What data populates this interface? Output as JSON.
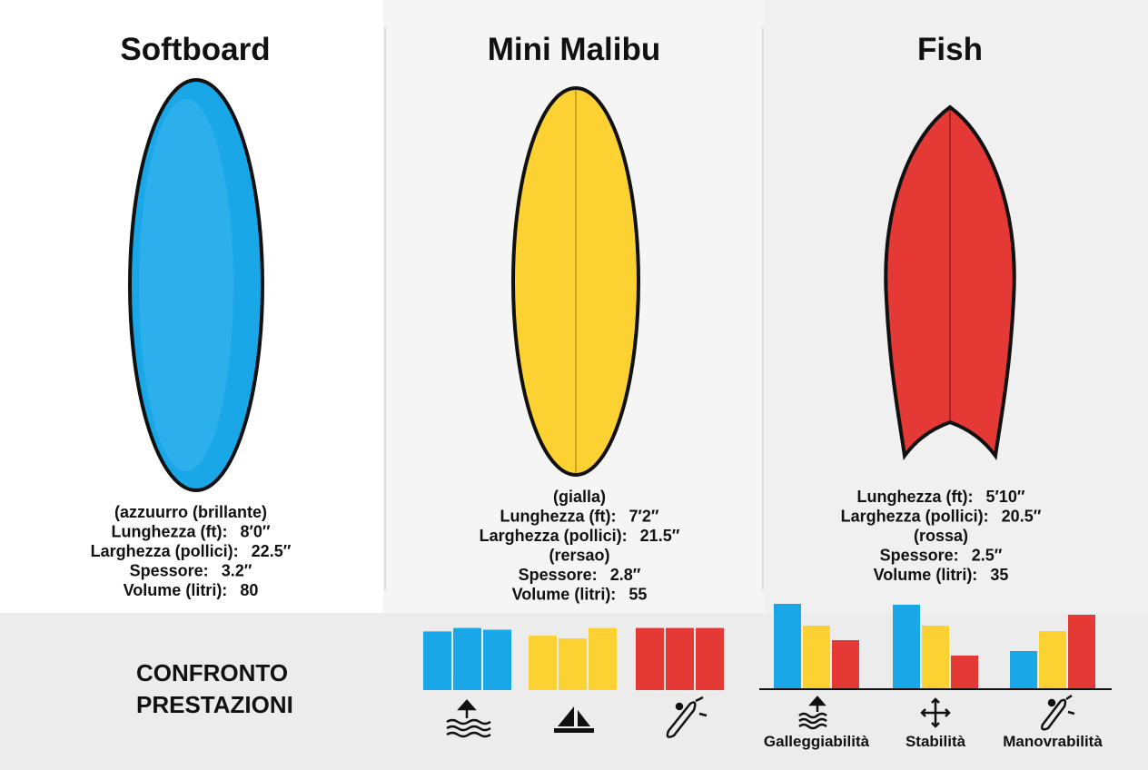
{
  "boards": [
    {
      "title": "Softboard",
      "color": "#1aa7e8",
      "lines": [
        {
          "label": "(azzuurro (brillante)"
        },
        {
          "label": "Lunghezza (ft):",
          "value": "8′0″"
        },
        {
          "label": "Larghezza (pollici):",
          "value": "22.5″"
        },
        {
          "label": "Spessore:",
          "value": "3.2″"
        },
        {
          "label": "Volume (litri):",
          "value": "80"
        }
      ]
    },
    {
      "title": "Mini Malibu",
      "color": "#fcd232",
      "lines": [
        {
          "label": "(gialla)"
        },
        {
          "label": "Lunghezza (ft):",
          "value": "7′2″"
        },
        {
          "label": "Larghezza (pollici):",
          "value": "21.5″"
        },
        {
          "label": "(rersao)"
        },
        {
          "label": "Spessore:",
          "value": "2.8″"
        },
        {
          "label": "Volume (litri):",
          "value": "55"
        }
      ]
    },
    {
      "title": "Fish",
      "color": "#e53935",
      "lines": [
        {
          "label": "Lunghezza (ft):",
          "value": "5′10″"
        },
        {
          "label": "Larghezza (pollici):",
          "value": "20.5″"
        },
        {
          "label": "(rossa)"
        },
        {
          "label": "Spessore:",
          "value": "2.5″"
        },
        {
          "label": "Volume (litri):",
          "value": "35"
        }
      ]
    }
  ],
  "performance": {
    "title_lines": [
      "CONFRONTO",
      "PRESTAZIONI"
    ],
    "charts": [
      {
        "type": "bar",
        "ylim": [
          0,
          100
        ],
        "categories": [
          null,
          null,
          null
        ],
        "series": [
          {
            "color": "#1aa7e8",
            "values": [
              68,
              72,
              70
            ]
          },
          {
            "color": "#fcd232",
            "values": [
              63,
              60,
              72
            ]
          },
          {
            "color": "#e53935",
            "values": [
              72,
              72,
              72
            ]
          }
        ]
      },
      {
        "type": "bar",
        "ylim": [
          0,
          100
        ],
        "categories": [
          "Galleggiabilità",
          "Stabilità",
          "Manovrabilità"
        ],
        "series": [
          {
            "color": "#1aa7e8",
            "values": [
              93,
              92,
              41
            ]
          },
          {
            "color": "#fcd232",
            "values": [
              69,
              69,
              63
            ]
          },
          {
            "color": "#e53935",
            "values": [
              53,
              36,
              81
            ]
          }
        ]
      }
    ]
  }
}
